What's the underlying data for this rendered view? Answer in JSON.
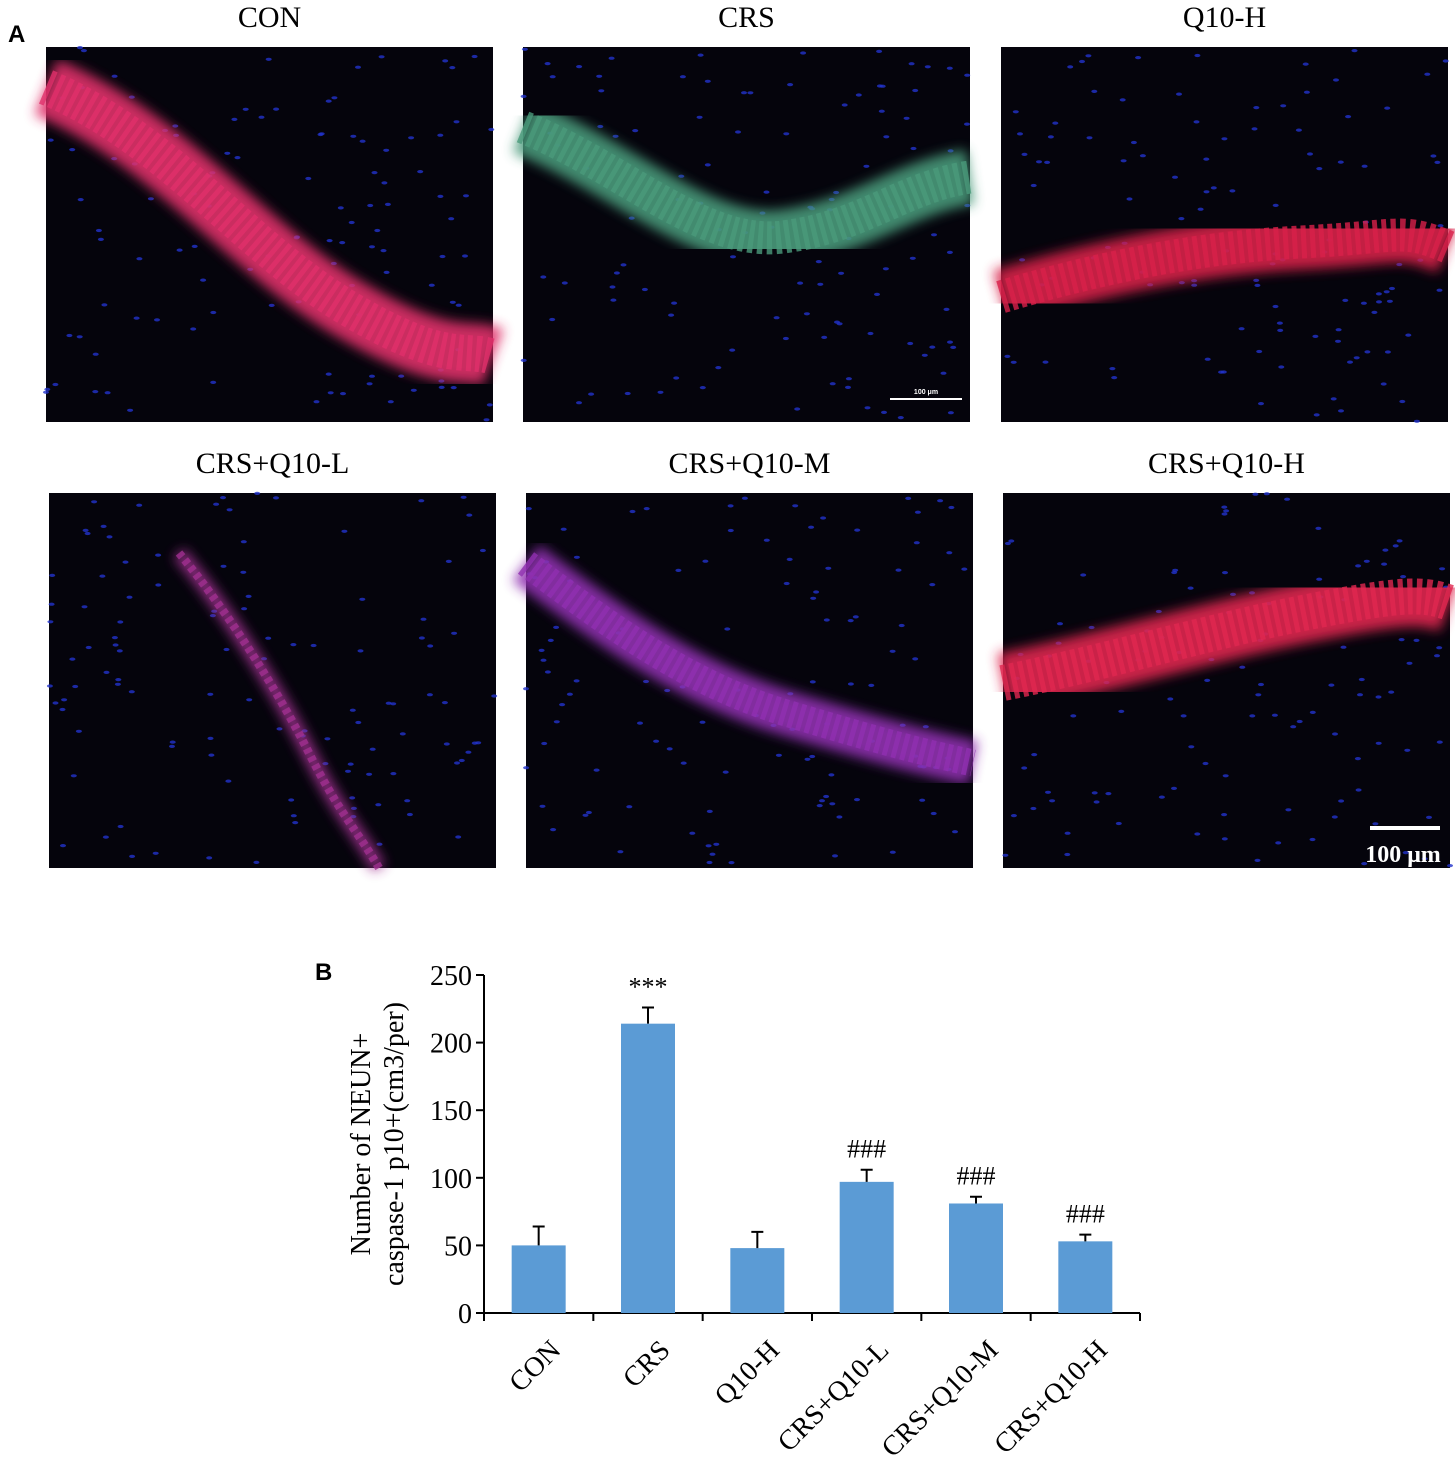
{
  "panel_labels": [
    "A",
    "B"
  ],
  "images": {
    "titles": [
      "CON",
      "CRS",
      "Q10-H",
      "CRS+Q10-L",
      "CRS+Q10-M",
      "CRS+Q10-H"
    ],
    "scale_bars": [
      "100 μm",
      "100 μm"
    ]
  },
  "chart_data": {
    "type": "bar",
    "ylabel": [
      "Number of NEUN+",
      "caspase-1 p10+(cm3/per)"
    ],
    "categories": [
      "CON",
      "CRS",
      "Q10-H",
      "CRS+Q10-L",
      "CRS+Q10-M",
      "CRS+Q10-H"
    ],
    "values": [
      50,
      214,
      48,
      97,
      81,
      53
    ],
    "errors": [
      14,
      12,
      12,
      9,
      5,
      5
    ],
    "value_annotations": [
      null,
      "***",
      null,
      "###",
      "###",
      "###"
    ],
    "color": "#5b9bd5",
    "ylim": [
      0,
      250
    ],
    "yticks": [
      0,
      50,
      100,
      150,
      200,
      250
    ],
    "grid": false
  }
}
